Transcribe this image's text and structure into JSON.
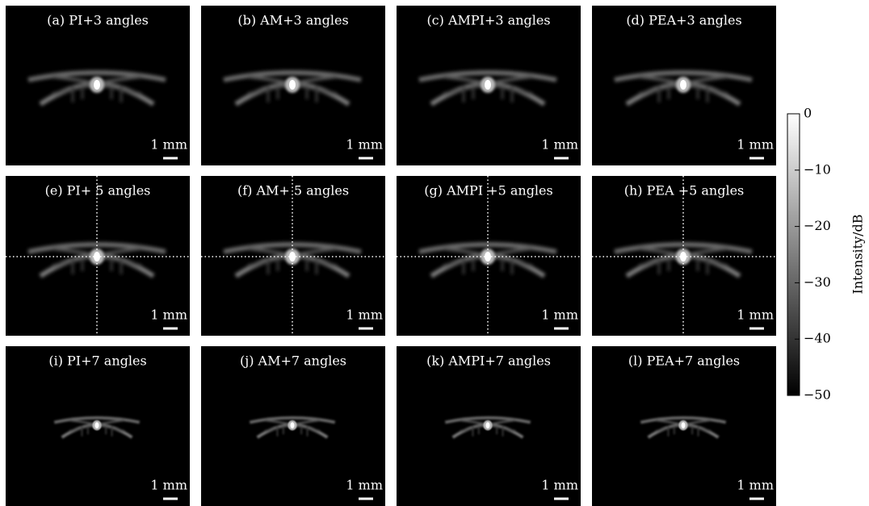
{
  "panels": [
    {
      "title": "(a) PI+3 angles",
      "scale": "1 mm"
    },
    {
      "title": "(b) AM+3 angles",
      "scale": "1 mm"
    },
    {
      "title": "(c) AMPI+3 angles",
      "scale": "1 mm"
    },
    {
      "title": "(d) PEA+3 angles",
      "scale": "1 mm"
    },
    {
      "title": "(e) PI+ 5 angles",
      "scale": "1 mm"
    },
    {
      "title": "(f) AM+ 5 angles",
      "scale": "1 mm"
    },
    {
      "title": "(g) AMPI +5 angles",
      "scale": "1 mm"
    },
    {
      "title": "(h) PEA +5 angles",
      "scale": "1 mm"
    },
    {
      "title": "(i) PI+7 angles",
      "scale": "1 mm"
    },
    {
      "title": "(j) AM+7 angles",
      "scale": "1 mm"
    },
    {
      "title": "(k) AMPI+7 angles",
      "scale": "1 mm"
    },
    {
      "title": "(l) PEA+7 angles",
      "scale": "1 mm"
    }
  ],
  "colorbar": {
    "label": "Intensity/dB",
    "lim": [
      -50,
      0
    ],
    "ticks": [
      0,
      {
        "value": -10,
        "label": "−10"
      },
      {
        "value": -20,
        "label": "−20"
      },
      {
        "value": -30,
        "label": "−30"
      },
      {
        "value": -40,
        "label": "−40"
      },
      {
        "value": -50,
        "label": "−50"
      }
    ]
  }
}
